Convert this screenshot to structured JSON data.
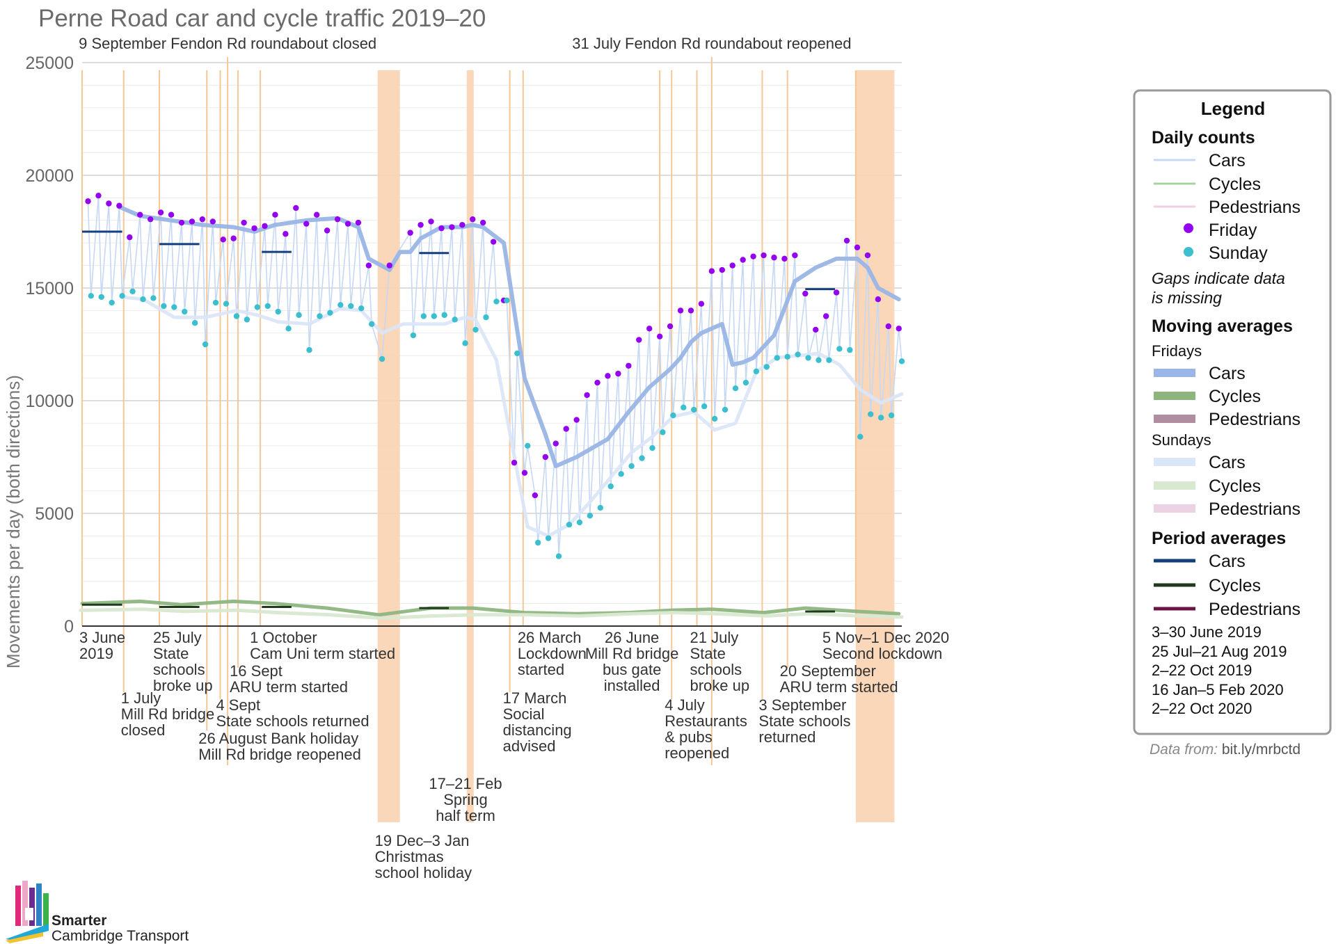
{
  "chart_data": {
    "type": "line",
    "title": "Perne Road car and cycle traffic 2019–20",
    "ylabel": "Movements per day (both directions)",
    "ylim": [
      0,
      25000
    ],
    "yticks": [
      "0",
      "5000",
      "10000",
      "15000",
      "20000",
      "25000"
    ],
    "x_range": [
      "2019-06-03",
      "2020-12-06"
    ],
    "grid": true,
    "legend_position": "right",
    "shaded_periods": [
      {
        "start": "2019-12-19",
        "end": "2020-01-03",
        "label": "19 Dec–3 Jan\nChristmas\nschool holiday"
      },
      {
        "start": "2020-02-17",
        "end": "2020-02-21",
        "label": "17–21 Feb\nSpring\nhalf term"
      },
      {
        "start": "2020-11-05",
        "end": "2020-12-01",
        "label": "5 Nov–1 Dec 2020\nSecond lockdown"
      }
    ],
    "events": [
      {
        "date": "2019-06-03",
        "label": "3 June\n2019",
        "row": "upper"
      },
      {
        "date": "2019-07-01",
        "label": "1 July\nMill Rd bridge\nclosed",
        "row": "lower"
      },
      {
        "date": "2019-07-25",
        "label": "25 July\nState\nschools\nbroke up",
        "row": "upper"
      },
      {
        "date": "2019-08-26",
        "label": "26 August Bank holiday\nMill Rd bridge reopened",
        "row": "lower3"
      },
      {
        "date": "2019-09-04",
        "label": "4 Sept\nState schools returned",
        "row": "lower2"
      },
      {
        "date": "2019-09-09",
        "label": "9 September Fendon Rd roundabout closed",
        "row": "top"
      },
      {
        "date": "2019-09-16",
        "label": "16 Sept\nARU term started",
        "row": "mid"
      },
      {
        "date": "2019-10-01",
        "label": "1 October\nCam Uni term started",
        "row": "upper"
      },
      {
        "date": "2020-03-17",
        "label": "17 March\nSocial\ndistancing\nadvised",
        "row": "lower"
      },
      {
        "date": "2020-03-26",
        "label": "26 March\nLockdown\nstarted",
        "row": "upper"
      },
      {
        "date": "2020-06-26",
        "label": "26 June\nMill Rd bridge\nbus gate\ninstalled",
        "row": "upper"
      },
      {
        "date": "2020-07-04",
        "label": "4 July\nRestaurants\n& pubs\nreopened",
        "row": "lower2"
      },
      {
        "date": "2020-07-21",
        "label": "21 July\nState\nschools\nbroke up",
        "row": "upper"
      },
      {
        "date": "2020-07-31",
        "label": "31 July Fendon Rd roundabout reopened",
        "row": "top"
      },
      {
        "date": "2020-09-03",
        "label": "3 September\nState schools\nreturned",
        "row": "lower2"
      },
      {
        "date": "2020-09-20",
        "label": "20 September\nARU term started",
        "row": "mid"
      },
      {
        "date": "2020-11-05",
        "label": "5 Nov–1 Dec 2020\nSecond lockdown",
        "row": "upper"
      }
    ],
    "series": [
      {
        "name": "Cars",
        "kind": "Moving averages · Fridays",
        "color": "#9ab5e6",
        "x": [
          "2019-06-28",
          "2019-07-12",
          "2019-08-02",
          "2019-08-23",
          "2019-09-13",
          "2019-09-27",
          "2019-10-11",
          "2019-11-01",
          "2019-11-22",
          "2019-12-06",
          "2019-12-13",
          "2019-12-27",
          "2020-01-03",
          "2020-01-10",
          "2020-01-17",
          "2020-01-31",
          "2020-02-14",
          "2020-02-21",
          "2020-02-28",
          "2020-03-13",
          "2020-03-27",
          "2020-04-10",
          "2020-04-17",
          "2020-05-01",
          "2020-05-22",
          "2020-06-05",
          "2020-06-19",
          "2020-07-03",
          "2020-07-10",
          "2020-07-17",
          "2020-07-24",
          "2020-07-31",
          "2020-08-07",
          "2020-08-14",
          "2020-08-21",
          "2020-08-28",
          "2020-09-11",
          "2020-09-25",
          "2020-10-09",
          "2020-10-23",
          "2020-11-06",
          "2020-11-13",
          "2020-11-20",
          "2020-12-04"
        ],
        "values": [
          18600,
          18200,
          18000,
          17800,
          17700,
          17500,
          17800,
          18000,
          18100,
          17700,
          16300,
          15800,
          16600,
          16600,
          17200,
          17700,
          17700,
          17800,
          17700,
          17000,
          11000,
          8500,
          7100,
          7500,
          8300,
          9500,
          10600,
          11400,
          11900,
          12600,
          13000,
          13200,
          13400,
          11600,
          11700,
          11900,
          12900,
          15300,
          15900,
          16300,
          16300,
          15900,
          15000,
          14500
        ]
      },
      {
        "name": "Cars",
        "kind": "Moving averages · Sundays",
        "color": "#dbe6f8",
        "x": [
          "2019-06-30",
          "2019-07-14",
          "2019-08-04",
          "2019-08-25",
          "2019-09-15",
          "2019-09-29",
          "2019-10-13",
          "2019-11-03",
          "2019-11-24",
          "2019-12-08",
          "2019-12-22",
          "2020-01-05",
          "2020-01-19",
          "2020-02-02",
          "2020-02-16",
          "2020-02-23",
          "2020-03-08",
          "2020-03-15",
          "2020-03-29",
          "2020-04-12",
          "2020-04-26",
          "2020-05-10",
          "2020-05-24",
          "2020-06-07",
          "2020-06-21",
          "2020-07-05",
          "2020-07-19",
          "2020-08-02",
          "2020-08-16",
          "2020-08-30",
          "2020-09-13",
          "2020-09-27",
          "2020-10-11",
          "2020-10-25",
          "2020-11-08",
          "2020-11-22",
          "2020-12-06"
        ],
        "values": [
          14600,
          14500,
          13700,
          13700,
          14000,
          13800,
          13500,
          13400,
          14100,
          14000,
          13000,
          13400,
          13400,
          13400,
          13700,
          13600,
          11800,
          9300,
          4400,
          4000,
          4500,
          5500,
          6600,
          7700,
          8400,
          9300,
          9500,
          8700,
          9000,
          11300,
          11900,
          12000,
          12100,
          11600,
          10500,
          9900,
          10300
        ]
      },
      {
        "name": "Cycles",
        "kind": "Moving averages · Fridays",
        "color": "#8db67f",
        "x": [
          "2019-06-03",
          "2019-07-12",
          "2019-08-09",
          "2019-09-13",
          "2019-10-11",
          "2019-11-15",
          "2019-12-20",
          "2020-01-24",
          "2020-02-21",
          "2020-03-27",
          "2020-05-01",
          "2020-06-05",
          "2020-07-03",
          "2020-07-31",
          "2020-09-04",
          "2020-10-02",
          "2020-11-06",
          "2020-12-04"
        ],
        "values": [
          1000,
          1100,
          950,
          1100,
          1000,
          800,
          500,
          800,
          800,
          600,
          550,
          600,
          700,
          750,
          600,
          800,
          650,
          550
        ]
      },
      {
        "name": "Cycles",
        "kind": "Moving averages · Sundays",
        "color": "#d9e8d1",
        "x": [
          "2019-06-02",
          "2019-07-14",
          "2019-08-11",
          "2019-09-15",
          "2019-10-13",
          "2019-11-17",
          "2019-12-22",
          "2020-01-26",
          "2020-02-23",
          "2020-03-29",
          "2020-05-03",
          "2020-06-07",
          "2020-07-05",
          "2020-08-02",
          "2020-09-06",
          "2020-10-04",
          "2020-11-08",
          "2020-12-06"
        ],
        "values": [
          700,
          750,
          650,
          700,
          600,
          500,
          350,
          450,
          500,
          500,
          450,
          550,
          600,
          550,
          450,
          550,
          450,
          400
        ]
      },
      {
        "name": "Cars",
        "kind": "Period averages",
        "color": "#143f7e",
        "periods": [
          {
            "start": "2019-06-03",
            "end": "2019-06-30",
            "value": 17500
          },
          {
            "start": "2019-07-25",
            "end": "2019-08-21",
            "value": 16950
          },
          {
            "start": "2019-10-02",
            "end": "2019-10-22",
            "value": 16600
          },
          {
            "start": "2020-01-16",
            "end": "2020-02-05",
            "value": 16550
          },
          {
            "start": "2020-10-02",
            "end": "2020-10-22",
            "value": 14950
          }
        ]
      },
      {
        "name": "Cycles",
        "kind": "Period averages",
        "color": "#1f3a1c",
        "periods": [
          {
            "start": "2019-06-03",
            "end": "2019-06-30",
            "value": 950
          },
          {
            "start": "2019-07-25",
            "end": "2019-08-21",
            "value": 850
          },
          {
            "start": "2019-10-02",
            "end": "2019-10-22",
            "value": 850
          },
          {
            "start": "2020-01-16",
            "end": "2020-02-05",
            "value": 800
          },
          {
            "start": "2020-10-02",
            "end": "2020-10-22",
            "value": 650
          }
        ]
      },
      {
        "name": "Friday",
        "kind": "Daily counts",
        "marker": "dot",
        "color": "#9400f0",
        "x": [
          "2019-06-07",
          "2019-06-14",
          "2019-06-21",
          "2019-06-28",
          "2019-07-05",
          "2019-07-12",
          "2019-07-19",
          "2019-07-26",
          "2019-08-02",
          "2019-08-09",
          "2019-08-16",
          "2019-08-23",
          "2019-08-30",
          "2019-09-06",
          "2019-09-13",
          "2019-09-20",
          "2019-09-27",
          "2019-10-04",
          "2019-10-11",
          "2019-10-18",
          "2019-10-25",
          "2019-11-01",
          "2019-11-08",
          "2019-11-15",
          "2019-11-22",
          "2019-11-29",
          "2019-12-06",
          "2019-12-13",
          "2019-12-27",
          "2020-01-10",
          "2020-01-17",
          "2020-01-24",
          "2020-01-31",
          "2020-02-07",
          "2020-02-14",
          "2020-02-21",
          "2020-02-28",
          "2020-03-06",
          "2020-03-13",
          "2020-03-20",
          "2020-03-27",
          "2020-04-03",
          "2020-04-10",
          "2020-04-17",
          "2020-04-24",
          "2020-05-01",
          "2020-05-08",
          "2020-05-15",
          "2020-05-22",
          "2020-05-29",
          "2020-06-05",
          "2020-06-12",
          "2020-06-19",
          "2020-06-26",
          "2020-07-03",
          "2020-07-10",
          "2020-07-17",
          "2020-07-24",
          "2020-07-31",
          "2020-08-07",
          "2020-08-14",
          "2020-08-21",
          "2020-08-28",
          "2020-09-04",
          "2020-09-11",
          "2020-09-18",
          "2020-09-25",
          "2020-10-02",
          "2020-10-09",
          "2020-10-16",
          "2020-10-23",
          "2020-10-30",
          "2020-11-06",
          "2020-11-13",
          "2020-11-20",
          "2020-11-27",
          "2020-12-04"
        ],
        "values": [
          18850,
          19100,
          18750,
          18650,
          17250,
          18250,
          18050,
          18350,
          18250,
          17900,
          17950,
          18050,
          17950,
          17150,
          17200,
          17900,
          17650,
          17750,
          18250,
          17400,
          18550,
          17850,
          18250,
          17550,
          18050,
          17850,
          17900,
          16000,
          16000,
          17450,
          17800,
          17950,
          17650,
          17700,
          17800,
          18050,
          17900,
          17050,
          14450,
          7250,
          6800,
          5800,
          7500,
          8100,
          8750,
          9150,
          10250,
          10800,
          11100,
          11200,
          11550,
          12700,
          13200,
          12850,
          13300,
          14000,
          14000,
          14300,
          15750,
          15800,
          16000,
          16250,
          16400,
          16450,
          16350,
          16300,
          16450,
          14750,
          13150,
          13750,
          14800,
          17100,
          16800,
          16450,
          14500,
          13300,
          13200
        ]
      },
      {
        "name": "Sunday",
        "kind": "Daily counts",
        "marker": "dot",
        "color": "#3bbfcf",
        "x": [
          "2019-06-09",
          "2019-06-16",
          "2019-06-23",
          "2019-06-30",
          "2019-07-07",
          "2019-07-14",
          "2019-07-21",
          "2019-07-28",
          "2019-08-04",
          "2019-08-11",
          "2019-08-18",
          "2019-08-25",
          "2019-09-01",
          "2019-09-08",
          "2019-09-15",
          "2019-09-22",
          "2019-09-29",
          "2019-10-06",
          "2019-10-13",
          "2019-10-20",
          "2019-10-27",
          "2019-11-03",
          "2019-11-10",
          "2019-11-17",
          "2019-11-24",
          "2019-12-01",
          "2019-12-08",
          "2019-12-15",
          "2019-12-22",
          "2020-01-12",
          "2020-01-19",
          "2020-01-26",
          "2020-02-02",
          "2020-02-09",
          "2020-02-16",
          "2020-02-23",
          "2020-03-01",
          "2020-03-08",
          "2020-03-15",
          "2020-03-22",
          "2020-03-29",
          "2020-04-05",
          "2020-04-12",
          "2020-04-19",
          "2020-04-26",
          "2020-05-03",
          "2020-05-10",
          "2020-05-17",
          "2020-05-24",
          "2020-05-31",
          "2020-06-07",
          "2020-06-14",
          "2020-06-21",
          "2020-06-28",
          "2020-07-05",
          "2020-07-12",
          "2020-07-19",
          "2020-07-26",
          "2020-08-02",
          "2020-08-09",
          "2020-08-16",
          "2020-08-23",
          "2020-08-30",
          "2020-09-06",
          "2020-09-13",
          "2020-09-20",
          "2020-09-27",
          "2020-10-04",
          "2020-10-11",
          "2020-10-18",
          "2020-10-25",
          "2020-11-01",
          "2020-11-08",
          "2020-11-15",
          "2020-11-22",
          "2020-11-29",
          "2020-12-06"
        ],
        "values": [
          14650,
          14600,
          14350,
          14650,
          14850,
          14500,
          14550,
          14200,
          14150,
          13950,
          13450,
          12500,
          14350,
          14300,
          13750,
          13600,
          14150,
          14200,
          13950,
          13200,
          13800,
          12250,
          13750,
          13900,
          14250,
          14200,
          14100,
          13400,
          11850,
          12900,
          13750,
          13750,
          13800,
          13600,
          12550,
          13150,
          13700,
          14400,
          14450,
          12100,
          8000,
          3700,
          3900,
          3100,
          4500,
          4600,
          4900,
          5250,
          6200,
          6750,
          7100,
          7450,
          7900,
          8600,
          9350,
          9700,
          9600,
          9750,
          9200,
          9600,
          10550,
          10800,
          11300,
          11500,
          11900,
          11950,
          12050,
          11900,
          11800,
          11800,
          12300,
          12250,
          8400,
          9400,
          9250,
          9350,
          11750
        ]
      }
    ]
  },
  "legend": {
    "title": "Legend",
    "daily_counts": "Daily counts",
    "cars": "Cars",
    "cycles": "Cycles",
    "pedestrians": "Pedestrians",
    "friday": "Friday",
    "sunday": "Sunday",
    "gaps_note_1": "Gaps indicate data",
    "gaps_note_2": "is missing",
    "moving_averages": "Moving averages",
    "fridays": "Fridays",
    "sundays": "Sundays",
    "period_averages": "Period averages",
    "periods": [
      "3–30 June 2019",
      "25 Jul–21 Aug 2019",
      "2–22 Oct 2019",
      "16 Jan–5 Feb 2020",
      "2–22 Oct 2020"
    ],
    "colors": {
      "daily_cars": "#c6d8f4",
      "daily_cycles": "#a8d3a0",
      "daily_peds": "#eccfe0",
      "friday": "#9400f0",
      "sunday": "#3bbfcf",
      "ma_fri_cars": "#9ab5e6",
      "ma_fri_cycles": "#8db67f",
      "ma_fri_peds": "#b08ea0",
      "ma_sun_cars": "#dbe6f8",
      "ma_sun_cycles": "#d9e8d1",
      "ma_sun_peds": "#ecd3e4",
      "pa_cars": "#143f7e",
      "pa_cycles": "#1f3a1c",
      "pa_peds": "#6b1544"
    }
  },
  "source": {
    "prefix": "Data from: ",
    "link": "bit.ly/mrbctd"
  },
  "logo": {
    "line1": "Smarter",
    "line2": "Cambridge Transport"
  }
}
